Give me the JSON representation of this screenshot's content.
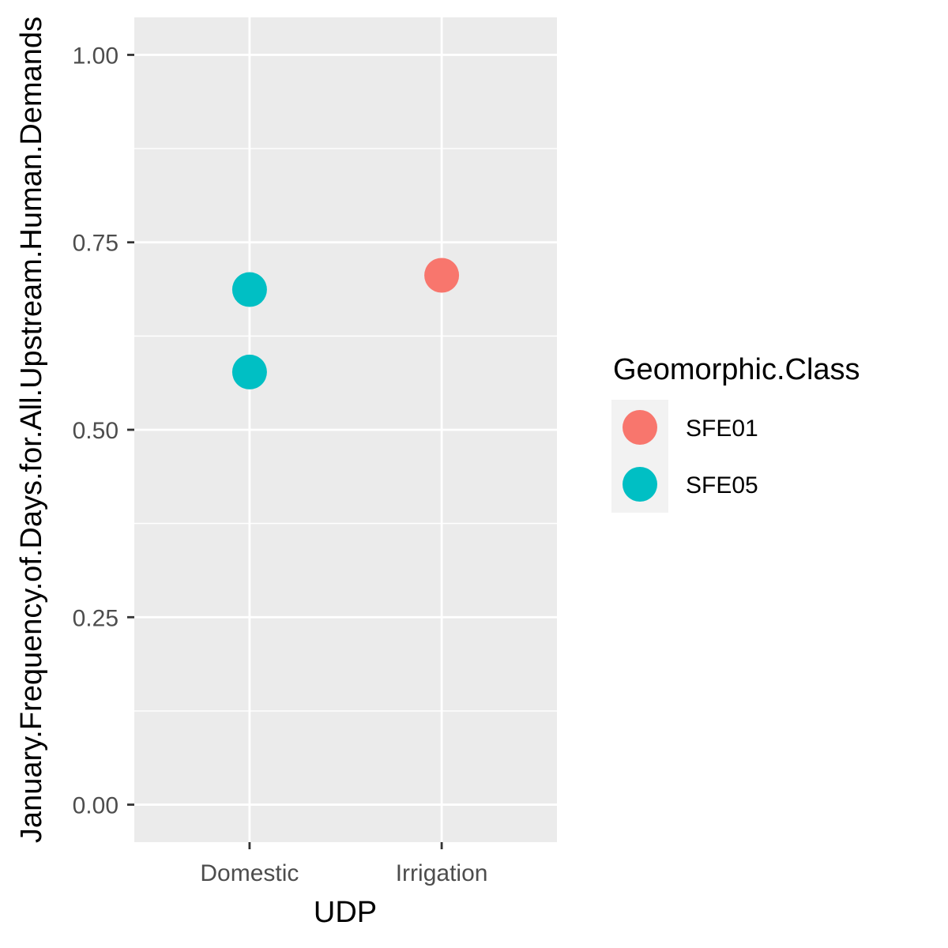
{
  "chart_data": {
    "type": "scatter",
    "xlabel": "UDP",
    "ylabel": "January.Frequency.of.Days.for.All.Upstream.Human.Demands",
    "categories": [
      "Domestic",
      "Irrigation"
    ],
    "ylim": [
      -0.05,
      1.05
    ],
    "yticks": [
      0.0,
      0.25,
      0.5,
      0.75,
      1.0
    ],
    "ytick_labels": [
      "0.00",
      "0.25",
      "0.50",
      "0.75",
      "1.00"
    ],
    "grid": true,
    "legend": {
      "title": "Geomorphic.Class",
      "placement": "right",
      "entries": [
        {
          "name": "SFE01",
          "color": "#F8766D"
        },
        {
          "name": "SFE05",
          "color": "#00BFC4"
        }
      ]
    },
    "points": [
      {
        "x": "Domestic",
        "y": 0.687,
        "class": "SFE05"
      },
      {
        "x": "Domestic",
        "y": 0.577,
        "class": "SFE05"
      },
      {
        "x": "Irrigation",
        "y": 0.706,
        "class": "SFE01"
      }
    ],
    "colors": {
      "panel_background": "#EBEBEB",
      "grid": "#FFFFFF",
      "tick": "#333333",
      "tick_text": "#4D4D4D"
    }
  }
}
